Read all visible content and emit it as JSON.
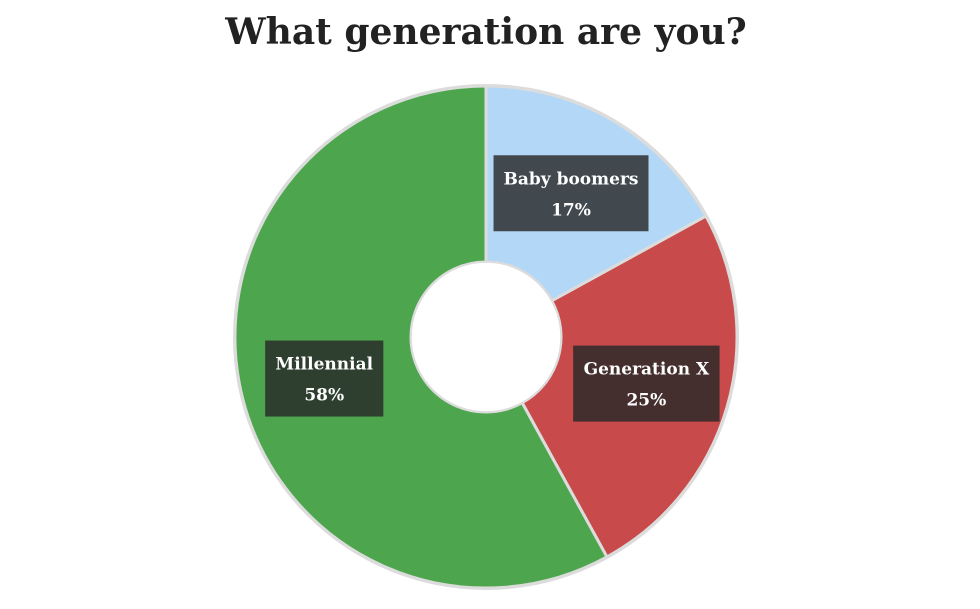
{
  "chart_data": {
    "type": "donut",
    "title": "What generation are you?",
    "categories": [
      "Baby boomers",
      "Generation X",
      "Millennial"
    ],
    "values": [
      17,
      25,
      58
    ],
    "value_labels": [
      "17%",
      "25%",
      "58%"
    ],
    "colors": [
      "#b3d7f7",
      "#c94a4a",
      "#4da64d"
    ]
  }
}
